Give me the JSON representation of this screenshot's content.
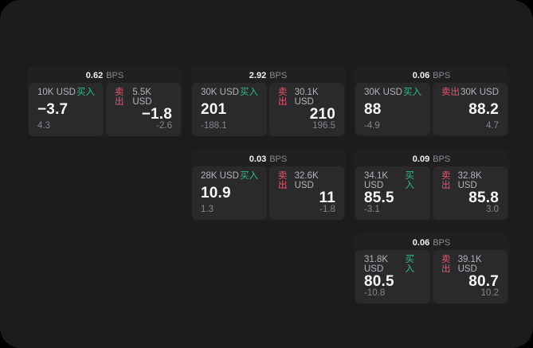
{
  "labels": {
    "buy": "买入",
    "sell": "卖出",
    "unit": "BPS"
  },
  "colors": {
    "buy": "#2ebd85",
    "sell": "#e8566d",
    "window_bg": "#1c1c1e",
    "card_bg": "#202022",
    "panel_bg": "#2a2a2c",
    "price_text": "#f7f7f7",
    "muted_text": "#86868a"
  },
  "cards": [
    {
      "bps": "0.62",
      "buy": {
        "size": "10K USD",
        "price": "−3.7",
        "sub": "4.3"
      },
      "sell": {
        "size": "5.5K USD",
        "price": "−1.8",
        "sub": "-2.6"
      }
    },
    {
      "bps": "2.92",
      "buy": {
        "size": "30K USD",
        "price": "201",
        "sub": "-188.1"
      },
      "sell": {
        "size": "30.1K USD",
        "price": "210",
        "sub": "196.5"
      }
    },
    {
      "bps": "0.06",
      "buy": {
        "size": "30K USD",
        "price": "88",
        "sub": "-4.9"
      },
      "sell": {
        "size": "30K USD",
        "price": "88.2",
        "sub": "4.7"
      }
    },
    {
      "bps": "0.03",
      "buy": {
        "size": "28K USD",
        "price": "10.9",
        "sub": "1.3"
      },
      "sell": {
        "size": "32.6K USD",
        "price": "11",
        "sub": "-1.8"
      }
    },
    {
      "bps": "0.09",
      "buy": {
        "size": "34.1K USD",
        "price": "85.5",
        "sub": "-3.1"
      },
      "sell": {
        "size": "32.8K USD",
        "price": "85.8",
        "sub": "3.0"
      }
    },
    {
      "bps": "0.06",
      "buy": {
        "size": "31.8K USD",
        "price": "80.5",
        "sub": "-10.8"
      },
      "sell": {
        "size": "39.1K USD",
        "price": "80.7",
        "sub": "10.2"
      }
    }
  ]
}
